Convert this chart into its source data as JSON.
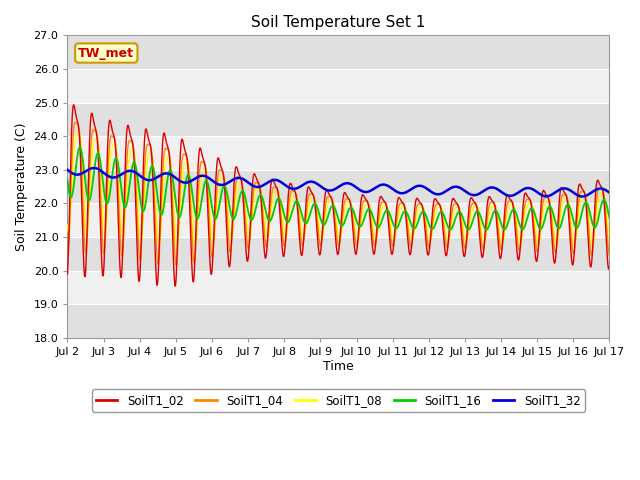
{
  "title": "Soil Temperature Set 1",
  "xlabel": "Time",
  "ylabel": "Soil Temperature (C)",
  "ylim": [
    18.0,
    27.0
  ],
  "yticks": [
    18.0,
    19.0,
    20.0,
    21.0,
    22.0,
    23.0,
    24.0,
    25.0,
    26.0,
    27.0
  ],
  "annotation": "TW_met",
  "annotation_color": "#cc0000",
  "annotation_bg": "#ffffcc",
  "annotation_border": "#cc9900",
  "series_colors": {
    "SoilT1_02": "#dd0000",
    "SoilT1_04": "#ff8800",
    "SoilT1_08": "#ffff00",
    "SoilT1_16": "#00cc00",
    "SoilT1_32": "#0000dd"
  },
  "bg_color": "#ffffff",
  "plot_bg_light": "#f0f0f0",
  "plot_bg_dark": "#e0e0e0",
  "xtick_labels": [
    "Jul 2",
    "Jul 3",
    "Jul 4",
    "Jul 5",
    "Jul 6",
    "Jul 7",
    "Jul 8",
    "Jul 9",
    "Jul 10",
    "Jul 11",
    "Jul 12",
    "Jul 13",
    "Jul 14",
    "Jul 15",
    "Jul 16",
    "Jul 17"
  ],
  "xtick_positions": [
    0,
    1,
    2,
    3,
    4,
    5,
    6,
    7,
    8,
    9,
    10,
    11,
    12,
    13,
    14,
    15
  ]
}
